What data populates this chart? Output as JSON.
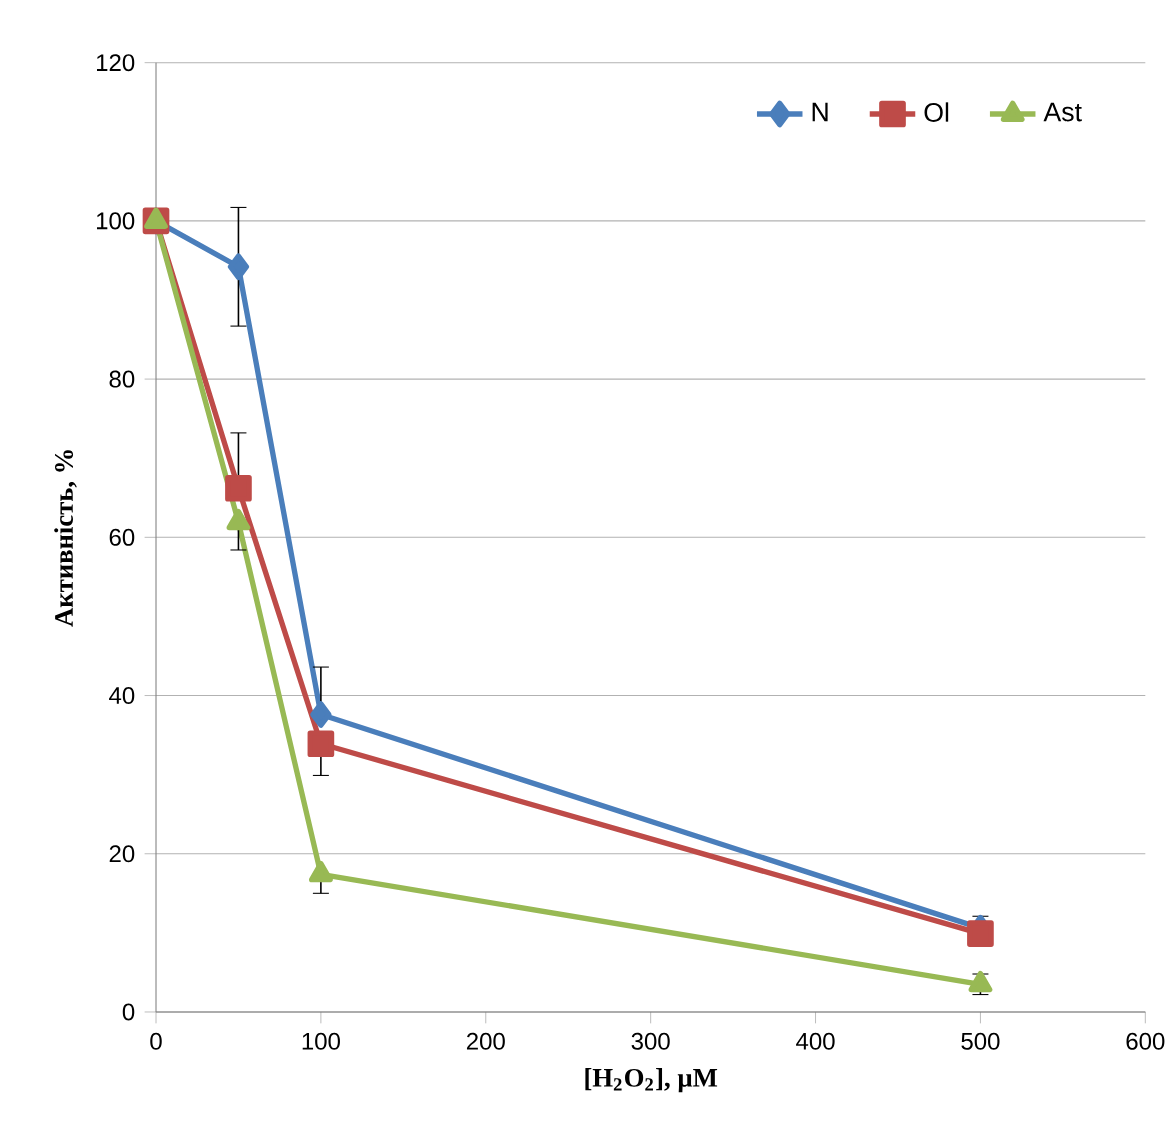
{
  "chart_data": {
    "type": "line",
    "xlabel": "[H$_{2}$O$_{2}$], µM",
    "ylabel": "Активність, %",
    "x": [
      0,
      50,
      100,
      500
    ],
    "series": [
      {
        "name": "N",
        "color": "#4a7ebb",
        "marker": "diamond",
        "values": [
          100,
          94.2,
          37.6,
          10.6
        ],
        "errors": [
          null,
          7.5,
          [
            37.6,
            43.6
          ],
          [
            10.6,
            12.1
          ]
        ]
      },
      {
        "name": "Ol",
        "color": "#be4b48",
        "marker": "square",
        "values": [
          100,
          66.2,
          33.9,
          9.9
        ],
        "errors": [
          null,
          [
            66.2,
            73.2
          ],
          [
            29.9,
            33.9
          ],
          null
        ]
      },
      {
        "name": "Ast",
        "color": "#98b954",
        "marker": "triangle",
        "values": [
          100,
          61.9,
          17.4,
          3.5
        ],
        "errors": [
          null,
          [
            58.4,
            61.9
          ],
          [
            15,
            17.4
          ],
          1.3
        ]
      }
    ],
    "xlim": [
      0,
      600
    ],
    "xticks": [
      0,
      100,
      200,
      300,
      400,
      500,
      600
    ],
    "ylim": [
      0,
      120
    ],
    "yticks": [
      0,
      20,
      40,
      60,
      80,
      100,
      120
    ],
    "grid": "y",
    "legend": "top right",
    "line_style": "solid"
  }
}
